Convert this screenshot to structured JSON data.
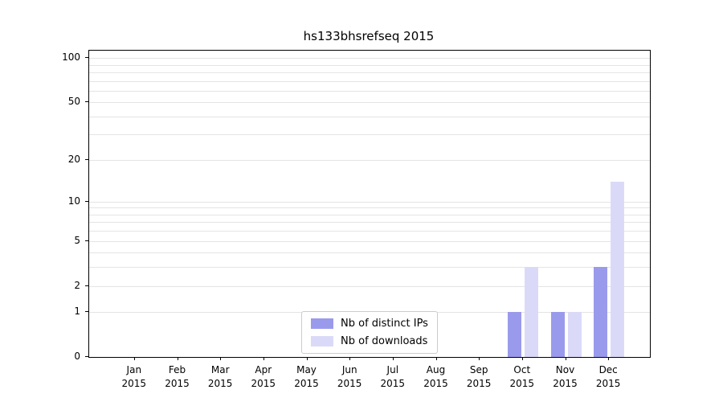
{
  "chart_data": {
    "type": "bar",
    "title": "hs133bhsrefseq 2015",
    "categories": [
      "Jan 2015",
      "Feb 2015",
      "Mar 2015",
      "Apr 2015",
      "May 2015",
      "Jun 2015",
      "Jul 2015",
      "Aug 2015",
      "Sep 2015",
      "Oct 2015",
      "Nov 2015",
      "Dec 2015"
    ],
    "series": [
      {
        "name": "Nb of distinct IPs",
        "color": "#9a9aec",
        "values": [
          0,
          0,
          0,
          0,
          0,
          0,
          0,
          0,
          0,
          1,
          1,
          3
        ]
      },
      {
        "name": "Nb of downloads",
        "color": "#dadaf8",
        "values": [
          0,
          0,
          0,
          0,
          0,
          0,
          0,
          0,
          0,
          3,
          1,
          14
        ]
      }
    ],
    "y_scale": "log1p",
    "ylim": [
      0,
      112
    ],
    "y_ticks": [
      100,
      50,
      20,
      10,
      5,
      2,
      1,
      0
    ],
    "y_gridlines": [
      1,
      2,
      3,
      4,
      5,
      6,
      7,
      8,
      9,
      10,
      20,
      30,
      40,
      50,
      60,
      70,
      80,
      90,
      100
    ],
    "grid": true,
    "legend_position": "lower center",
    "colors": {
      "axis": "#000000",
      "gridline": "#e4e4e4",
      "legend_border": "#cccccc",
      "background": "#ffffff"
    }
  }
}
